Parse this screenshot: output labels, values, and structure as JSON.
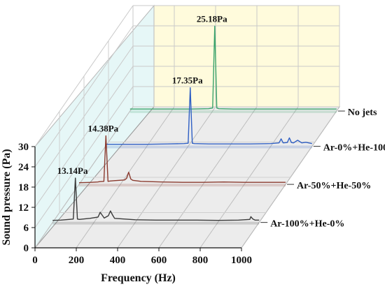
{
  "chart_data": {
    "type": "line",
    "projection": "3d-waterfall",
    "xlabel": "Frequency (Hz)",
    "ylabel": "Sound pressure (Pa)",
    "xlim": [
      0,
      1000
    ],
    "ylim": [
      0,
      30
    ],
    "xticks": [
      0,
      200,
      400,
      600,
      800,
      1000
    ],
    "yticks": [
      0,
      6,
      12,
      18,
      24,
      30
    ],
    "grid": true,
    "series": [
      {
        "name": "Ar-100%+He-0%",
        "color": "#3a3a3a",
        "peak_label": "13.14Pa",
        "x": [
          0,
          40,
          80,
          100,
          110,
          120,
          130,
          180,
          220,
          230,
          250,
          270,
          280,
          290,
          300,
          400,
          500,
          600,
          700,
          800,
          900,
          955,
          960,
          970,
          980,
          1000
        ],
        "y": [
          0.6,
          0.7,
          0.9,
          1.0,
          13.14,
          1.0,
          0.9,
          1.2,
          1.6,
          3.0,
          1.3,
          2.0,
          3.4,
          2.2,
          1.2,
          0.8,
          0.7,
          0.7,
          0.7,
          0.6,
          0.7,
          0.9,
          1.7,
          1.0,
          0.7,
          0.7
        ]
      },
      {
        "name": "Ar-50%+He-50%",
        "color": "#8b3a2e",
        "peak_label": "14.38Pa",
        "x": [
          0,
          60,
          90,
          100,
          120,
          130,
          140,
          150,
          170,
          220,
          230,
          240,
          250,
          260,
          300,
          400,
          500,
          600,
          700,
          800,
          900,
          960,
          1000
        ],
        "y": [
          0.5,
          0.6,
          0.7,
          0.8,
          0.9,
          14.38,
          0.9,
          1.0,
          1.1,
          1.3,
          1.8,
          3.6,
          1.6,
          1.2,
          0.9,
          0.7,
          0.6,
          0.6,
          0.7,
          0.6,
          0.6,
          0.6,
          0.6
        ]
      },
      {
        "name": "Ar-0%+He-100%",
        "color": "#2f5fc4",
        "peak_label": "17.35Pa",
        "x": [
          0,
          100,
          200,
          300,
          380,
          400,
          410,
          420,
          430,
          500,
          600,
          700,
          800,
          840,
          850,
          860,
          880,
          890,
          900,
          910,
          930,
          950,
          970,
          1000
        ],
        "y": [
          0.6,
          0.6,
          0.6,
          0.7,
          0.8,
          0.9,
          17.35,
          0.9,
          0.8,
          0.7,
          0.7,
          0.7,
          0.8,
          1.0,
          2.2,
          1.0,
          1.1,
          2.5,
          1.1,
          1.0,
          1.8,
          1.0,
          1.2,
          0.8
        ]
      },
      {
        "name": "No jets",
        "color": "#3aa36a",
        "peak_label": "25.18Pa",
        "x": [
          0,
          100,
          200,
          300,
          380,
          400,
          410,
          420,
          430,
          500,
          600,
          700,
          800,
          900,
          1000
        ],
        "y": [
          0.6,
          0.6,
          0.6,
          0.6,
          0.7,
          0.9,
          25.18,
          0.9,
          0.7,
          0.6,
          0.6,
          0.6,
          0.6,
          0.6,
          0.6
        ]
      }
    ]
  }
}
